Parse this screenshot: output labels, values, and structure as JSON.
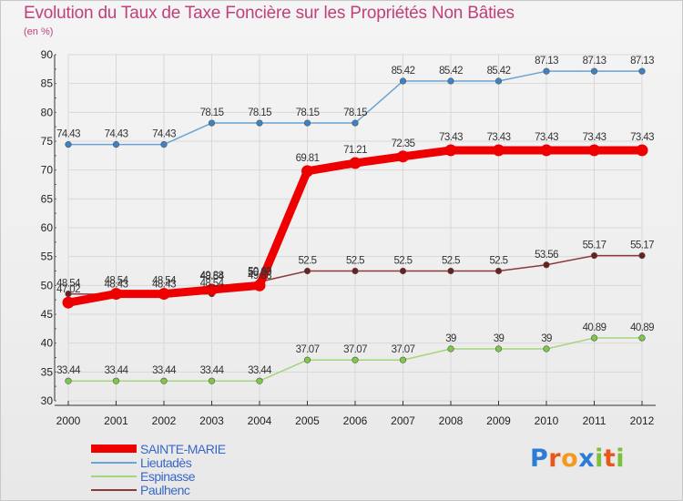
{
  "header": {
    "title": "Evolution du Taux de Taxe Foncière sur les Propriétés Non Bâties",
    "unit": "(en %)"
  },
  "colors": {
    "title": "#c0407a",
    "grid": "#d8d8d8",
    "axis": "#333333",
    "legend_text": "#3a66c8"
  },
  "chart_data": {
    "type": "line",
    "title": "Evolution du Taux de Taxe Foncière sur les Propriétés Non Bâties",
    "ylabel": "(en %)",
    "xlabel": "",
    "x": [
      "2000",
      "2001",
      "2002",
      "2003",
      "2004",
      "2005",
      "2006",
      "2007",
      "2008",
      "2009",
      "2010",
      "2011",
      "2012"
    ],
    "ylim": [
      30,
      90
    ],
    "yticks": [
      30,
      35,
      40,
      45,
      50,
      55,
      60,
      65,
      70,
      75,
      80,
      85,
      90
    ],
    "grid": true,
    "legend_position": "bottom-left",
    "series": [
      {
        "name": "SAINTE-MARIE",
        "color": "#ee0000",
        "marker_color": "#ee0000",
        "emphasis": true,
        "values": [
          47.02,
          48.54,
          48.54,
          null,
          50.0,
          69.81,
          71.21,
          72.35,
          73.43,
          73.43,
          73.43,
          73.43,
          73.43
        ],
        "labels": [
          "47.02",
          "48.54",
          "48.54",
          "48.54",
          "50.00",
          "69.81",
          "71.21",
          "72.35",
          "73.43",
          "73.43",
          "73.43",
          "73.43",
          "73.43"
        ]
      },
      {
        "name": "Lieutadès",
        "color": "#6aa3d5",
        "marker_color": "#3d82c4",
        "values": [
          74.43,
          74.43,
          74.43,
          78.15,
          78.15,
          78.15,
          78.15,
          85.42,
          85.42,
          85.42,
          87.13,
          87.13,
          87.13
        ],
        "labels": [
          "74.43",
          "74.43",
          "74.43",
          "78.15",
          "78.15",
          "78.15",
          "78.15",
          "85.42",
          "85.42",
          "85.42",
          "87.13",
          "87.13",
          "87.13"
        ]
      },
      {
        "name": "Espinasse",
        "color": "#a3d67c",
        "marker_color": "#7ec845",
        "values": [
          33.44,
          33.44,
          33.44,
          33.44,
          33.44,
          37.07,
          37.07,
          37.07,
          39,
          39,
          39,
          40.89,
          40.89
        ],
        "labels": [
          "33.44",
          "33.44",
          "33.44",
          "33.44",
          "33.44",
          "37.07",
          "37.07",
          "37.07",
          "39",
          "39",
          "39",
          "40.89",
          "40.89"
        ]
      },
      {
        "name": "Paulhenc",
        "color": "#8b3a3a",
        "marker_color": "#6b1f1f",
        "values": [
          48.54,
          48.43,
          48.43,
          48.54,
          50.63,
          52.5,
          52.5,
          52.5,
          52.5,
          52.5,
          53.56,
          55.17,
          55.17
        ],
        "labels": [
          "48.54",
          "48.43",
          "48.43",
          "48.54",
          "50.63",
          "52.5",
          "52.5",
          "52.5",
          "52.5",
          "52.5",
          "53.56",
          "55.17",
          "55.17"
        ]
      }
    ],
    "extra_labels": [
      {
        "x": "2003",
        "y": 49.88,
        "text": "49.88"
      },
      {
        "x": "2004",
        "y": 49.88,
        "text": "49.88"
      }
    ]
  },
  "legend": {
    "items": [
      {
        "label": "SAINTE-MARIE",
        "color": "#ee0000",
        "thickness": 9
      },
      {
        "label": "Lieutadès",
        "color": "#6aa3d5",
        "thickness": 2
      },
      {
        "label": "Espinasse",
        "color": "#a3d67c",
        "thickness": 2
      },
      {
        "label": "Paulhenc",
        "color": "#8b3a3a",
        "thickness": 2
      }
    ]
  },
  "logo": {
    "text": "Proxiti",
    "letter_colors": [
      "#2e7bd6",
      "#e8581c",
      "#f39a1e",
      "#2e7bd6",
      "#7cbf3a",
      "#e8581c",
      "#7cbf3a"
    ]
  }
}
